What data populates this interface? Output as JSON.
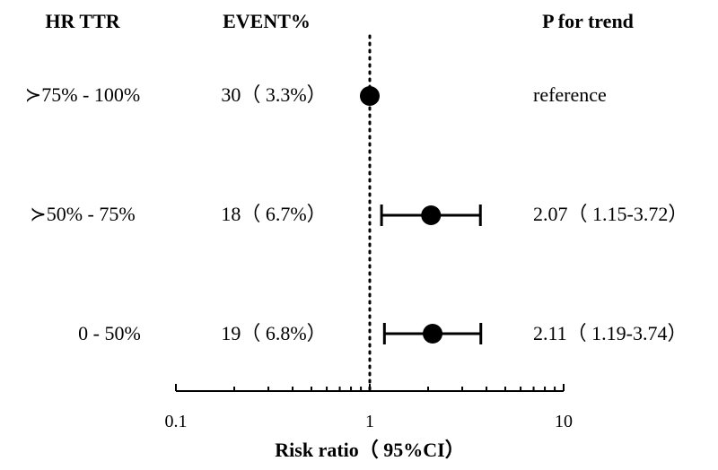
{
  "headers": {
    "group": "HR TTR",
    "event": "EVENT%",
    "p": "P for trend"
  },
  "chart_data": {
    "type": "forest",
    "x_scale": "log",
    "xlim": [
      0.1,
      10
    ],
    "xticks": [
      "0.1",
      "1",
      "10"
    ],
    "xlabel": "Risk ratio（ 95%CI）",
    "reference_line": 1,
    "rows": [
      {
        "group": "≻75% - 100%",
        "event": "30（ 3.3%）",
        "estimate": 1,
        "lower": null,
        "upper": null,
        "result": "reference"
      },
      {
        "group": "≻50% - 75%",
        "event": "18（ 6.7%）",
        "estimate": 2.07,
        "lower": 1.15,
        "upper": 3.72,
        "result": "2.07（ 1.15-3.72）"
      },
      {
        "group": "0 - 50%",
        "event": "19（ 6.8%）",
        "estimate": 2.11,
        "lower": 1.19,
        "upper": 3.74,
        "result": "2.11（ 1.19-3.74）"
      }
    ]
  }
}
